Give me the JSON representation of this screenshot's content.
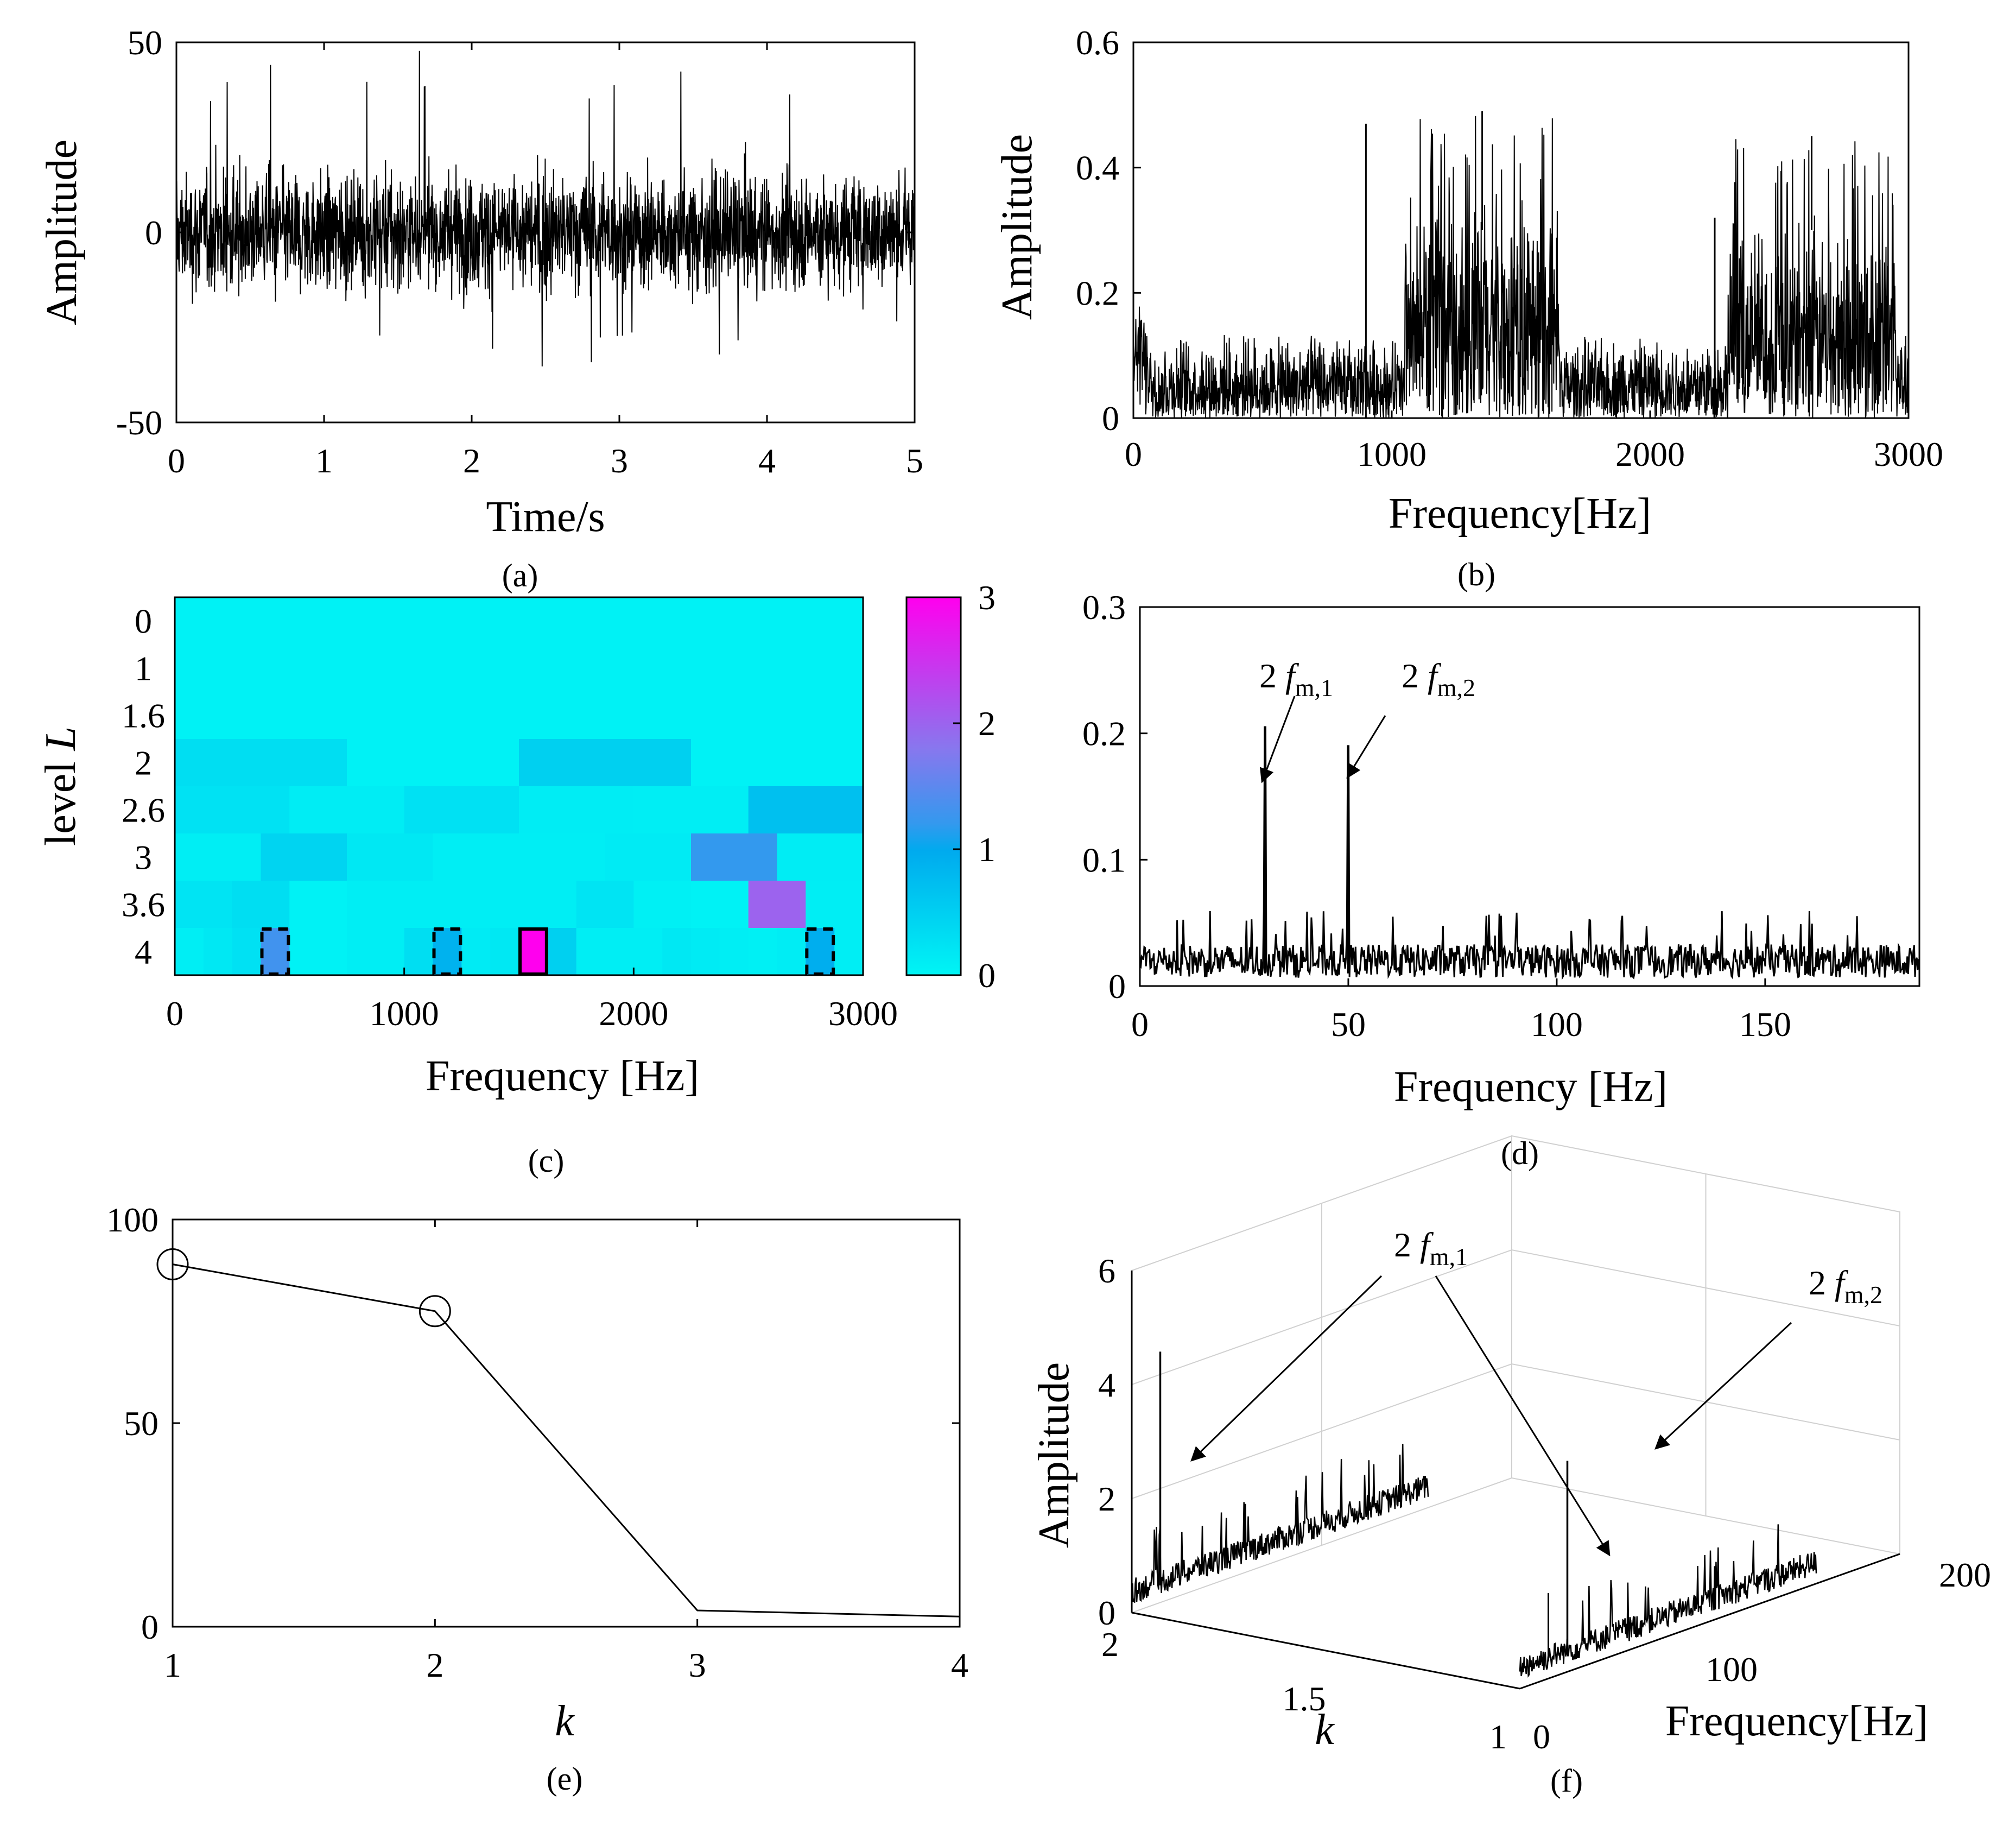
{
  "panels": {
    "a": {
      "label": "(a)"
    },
    "b": {
      "label": "(b)"
    },
    "c": {
      "label": "(c)"
    },
    "d": {
      "label": "(d)"
    },
    "e": {
      "label": "(e)"
    },
    "f": {
      "label": "(f)"
    }
  },
  "chart_data": [
    {
      "id": "a",
      "type": "line",
      "description_label": "(a)",
      "xlabel": "Time/s",
      "ylabel": "Amplitude",
      "xlim": [
        0,
        5
      ],
      "ylim": [
        -50,
        50
      ],
      "xticks": [
        0,
        1,
        2,
        3,
        4,
        5
      ],
      "yticks": [
        -50,
        0,
        50
      ],
      "xtick_labels": [
        "0",
        "1",
        "2",
        "3",
        "4",
        "5"
      ],
      "ytick_labels": [
        "-50",
        "0",
        "50"
      ],
      "signal": {
        "kind": "noise",
        "rms": 11,
        "peak_max": 48,
        "peak_min": -38,
        "color": "#000000"
      }
    },
    {
      "id": "b",
      "type": "line",
      "description_label": "(b)",
      "xlabel": "Frequency[Hz]",
      "ylabel": "Amplitude",
      "xlim": [
        0,
        3000
      ],
      "ylim": [
        0,
        0.6
      ],
      "xticks": [
        0,
        1000,
        2000,
        3000
      ],
      "yticks": [
        0,
        0.2,
        0.4,
        0.6
      ],
      "xtick_labels": [
        "0",
        "1000",
        "2000",
        "3000"
      ],
      "ytick_labels": [
        "0",
        "0.2",
        "0.4",
        "0.6"
      ],
      "baseline_level": 0.12,
      "bands": [
        {
          "from": 1050,
          "to": 1650,
          "level": 0.33,
          "peak": 0.49
        },
        {
          "from": 2300,
          "to": 2950,
          "level": 0.3,
          "peak": 0.45
        }
      ],
      "spikes": [
        {
          "x": 900,
          "y": 0.47
        },
        {
          "x": 2250,
          "y": 0.32
        }
      ]
    },
    {
      "id": "c",
      "type": "heatmap",
      "description_label": "(c)",
      "xlabel": "Frequency [Hz]",
      "ylabel": "level L",
      "xlim": [
        0,
        3000
      ],
      "xticks": [
        0,
        1000,
        2000,
        3000
      ],
      "xtick_labels": [
        "0",
        "1000",
        "2000",
        "3000"
      ],
      "levels": [
        "0",
        "1",
        "1.6",
        "2",
        "2.6",
        "3",
        "3.6",
        "4"
      ],
      "colorbar": {
        "range": [
          0,
          3
        ],
        "ticks": [
          0,
          1,
          2,
          3
        ],
        "tick_labels": [
          "0",
          "1",
          "2",
          "3"
        ]
      },
      "rows": [
        [
          0.05
        ],
        [
          0.05,
          0.05
        ],
        [
          0.05,
          0.05,
          0.05
        ],
        [
          0.35,
          0.05,
          0.55,
          0.05
        ],
        [
          0.28,
          0.12,
          0.3,
          0.12,
          0.1,
          0.75
        ],
        [
          0.1,
          0.5,
          0.2,
          0.1,
          0.1,
          0.15,
          1.2,
          0.12
        ],
        [
          0.25,
          0.35,
          0.05,
          0.1,
          0.1,
          0.1,
          0.1,
          0.25,
          0.08,
          0.05,
          2.0,
          0.1
        ],
        [
          0.1,
          0.2,
          0.3,
          1.3,
          0.05,
          0.05,
          0.1,
          0.1,
          0.35,
          0.9,
          0.15,
          0.2,
          3.0,
          0.55,
          0.1,
          0.1,
          0.1,
          0.2,
          0.15,
          0.1,
          0.08,
          0.12,
          0.95,
          0.1
        ]
      ],
      "highlights": [
        {
          "row": 7,
          "col": 3,
          "style": "dashed"
        },
        {
          "row": 7,
          "col": 9,
          "style": "dashed"
        },
        {
          "row": 7,
          "col": 12,
          "style": "solid"
        },
        {
          "row": 7,
          "col": 22,
          "style": "dashed"
        }
      ]
    },
    {
      "id": "d",
      "type": "line",
      "description_label": "(d)",
      "xlabel": "Frequency [Hz]",
      "ylabel": "",
      "xlim": [
        0,
        187
      ],
      "ylim": [
        0,
        0.3
      ],
      "xticks": [
        0,
        50,
        100,
        150
      ],
      "yticks": [
        0,
        0.1,
        0.2,
        0.3
      ],
      "xtick_labels": [
        "0",
        "50",
        "100",
        "150"
      ],
      "ytick_labels": [
        "0",
        "0.1",
        "0.2",
        "0.3"
      ],
      "noise_level": 0.022,
      "peaks": [
        {
          "x": 30,
          "y": 0.205
        },
        {
          "x": 50,
          "y": 0.19
        }
      ],
      "annotations": [
        {
          "text": "2",
          "italic": "f",
          "sub": "m,1"
        },
        {
          "text": "2",
          "italic": "f",
          "sub": "m,2"
        }
      ]
    },
    {
      "id": "e",
      "type": "line",
      "description_label": "(e)",
      "xlabel": "k",
      "ylabel": "",
      "xlim": [
        1,
        4
      ],
      "ylim": [
        0,
        100
      ],
      "xticks": [
        1,
        2,
        3,
        4
      ],
      "yticks": [
        0,
        50,
        100
      ],
      "xtick_labels": [
        "1",
        "2",
        "3",
        "4"
      ],
      "ytick_labels": [
        "0",
        "50",
        "100"
      ],
      "x": [
        1,
        2,
        3,
        4
      ],
      "y": [
        89,
        77.5,
        4,
        2.5
      ],
      "markers": [
        0,
        1
      ]
    },
    {
      "id": "f",
      "type": "line",
      "description_label": "(f)",
      "xlabel": "Frequency[Hz]",
      "ylabel": "Amplitude",
      "klabel": "k",
      "zlim": [
        0,
        6
      ],
      "zticks": [
        0,
        2,
        4,
        6
      ],
      "ztick_labels": [
        "0",
        "2",
        "4",
        "6"
      ],
      "kticks_labels": [
        "2",
        "1.5",
        "1"
      ],
      "fticks_labels": [
        "0",
        "100",
        "200"
      ],
      "traces": [
        {
          "k": 2,
          "peak": {
            "freq": 30,
            "amp": 4.4
          }
        },
        {
          "k": 1,
          "peak_small": {
            "freq": 30,
            "amp": 1.5
          },
          "peak": {
            "freq": 50,
            "amp": 3.7
          }
        }
      ],
      "annotations": [
        {
          "text": "2 ",
          "italic": "f",
          "sub": "m,1"
        },
        {
          "text": "2",
          "italic": "f",
          "sub": "m,2"
        }
      ]
    }
  ]
}
